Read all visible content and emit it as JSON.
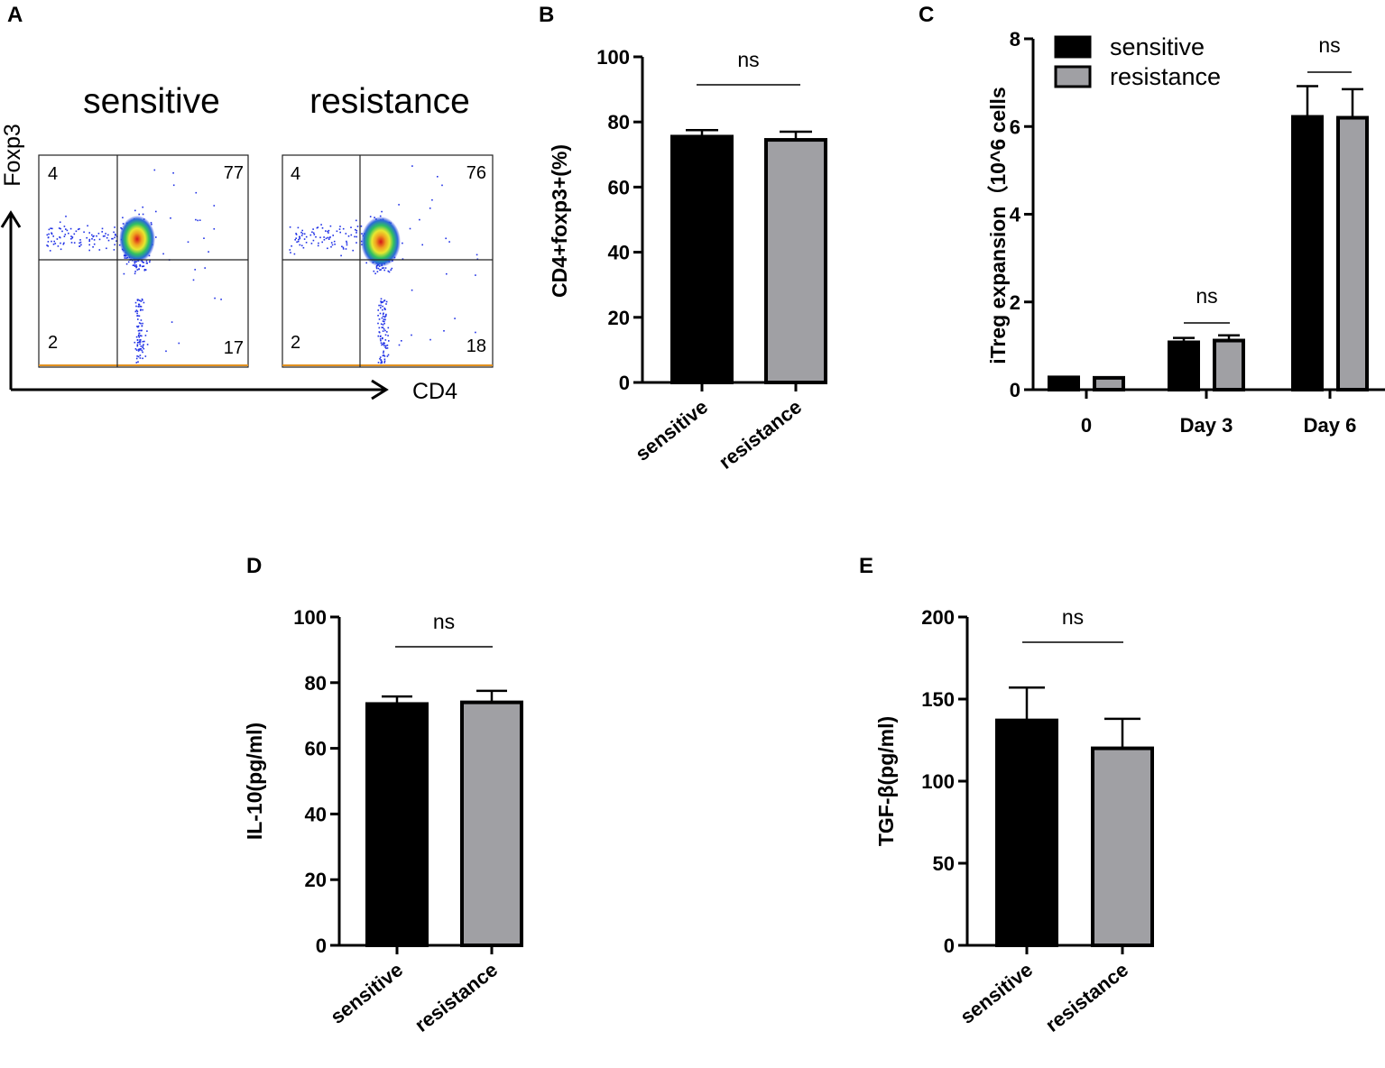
{
  "colors": {
    "sensitive": "#000000",
    "resistance": "#a0a0a4",
    "axis": "#000000"
  },
  "chart_data": [
    {
      "panel": "A",
      "type": "scatter",
      "description": "flow",
      "xlabel": "CD4",
      "ylabel": "Foxp3",
      "plots": [
        {
          "title": "sensitive",
          "quadrants": {
            "top_left": "4",
            "top_right": "77",
            "bottom_left": "2",
            "bottom_right": "17"
          }
        },
        {
          "title": "resistance",
          "quadrants": {
            "top_left": "4",
            "top_right": "76",
            "bottom_left": "2",
            "bottom_right": "18"
          }
        }
      ]
    },
    {
      "panel": "B",
      "type": "bar",
      "categories": [
        "sensitive",
        "resistance"
      ],
      "values": [
        75.5,
        74.5
      ],
      "errors": [
        2.0,
        2.5
      ],
      "ylabel": "CD4+foxp3+(%)",
      "ylim": [
        0,
        100
      ],
      "yticks": [
        "0",
        "20",
        "40",
        "60",
        "80",
        "100"
      ],
      "significance": "ns"
    },
    {
      "panel": "C",
      "type": "bar",
      "categories": [
        "0",
        "Day 3",
        "Day 6"
      ],
      "series": [
        {
          "name": "sensitive",
          "values": [
            0.28,
            1.08,
            6.22
          ],
          "errors": [
            0.0,
            0.1,
            0.7
          ]
        },
        {
          "name": "resistance",
          "values": [
            0.27,
            1.12,
            6.2
          ],
          "errors": [
            0.0,
            0.12,
            0.65
          ]
        }
      ],
      "ylabel": "iTreg expansion（10^6 cells",
      "ylim": [
        0,
        8
      ],
      "yticks": [
        "0",
        "2",
        "4",
        "6",
        "8"
      ],
      "significance": [
        "ns",
        "ns"
      ]
    },
    {
      "panel": "D",
      "type": "bar",
      "categories": [
        "sensitive",
        "resistance"
      ],
      "values": [
        73.5,
        74.0
      ],
      "errors": [
        2.3,
        3.5
      ],
      "ylabel": "IL-10(pg/ml)",
      "ylim": [
        0,
        100
      ],
      "yticks": [
        "0",
        "20",
        "40",
        "60",
        "80",
        "100"
      ],
      "significance": "ns"
    },
    {
      "panel": "E",
      "type": "bar",
      "categories": [
        "sensitive",
        "resistance"
      ],
      "values": [
        137,
        120
      ],
      "errors": [
        20,
        18
      ],
      "ylabel": "TGF-β(pg/ml)",
      "ylim": [
        0,
        200
      ],
      "yticks": [
        "0",
        "50",
        "100",
        "150",
        "200"
      ],
      "significance": "ns"
    }
  ]
}
